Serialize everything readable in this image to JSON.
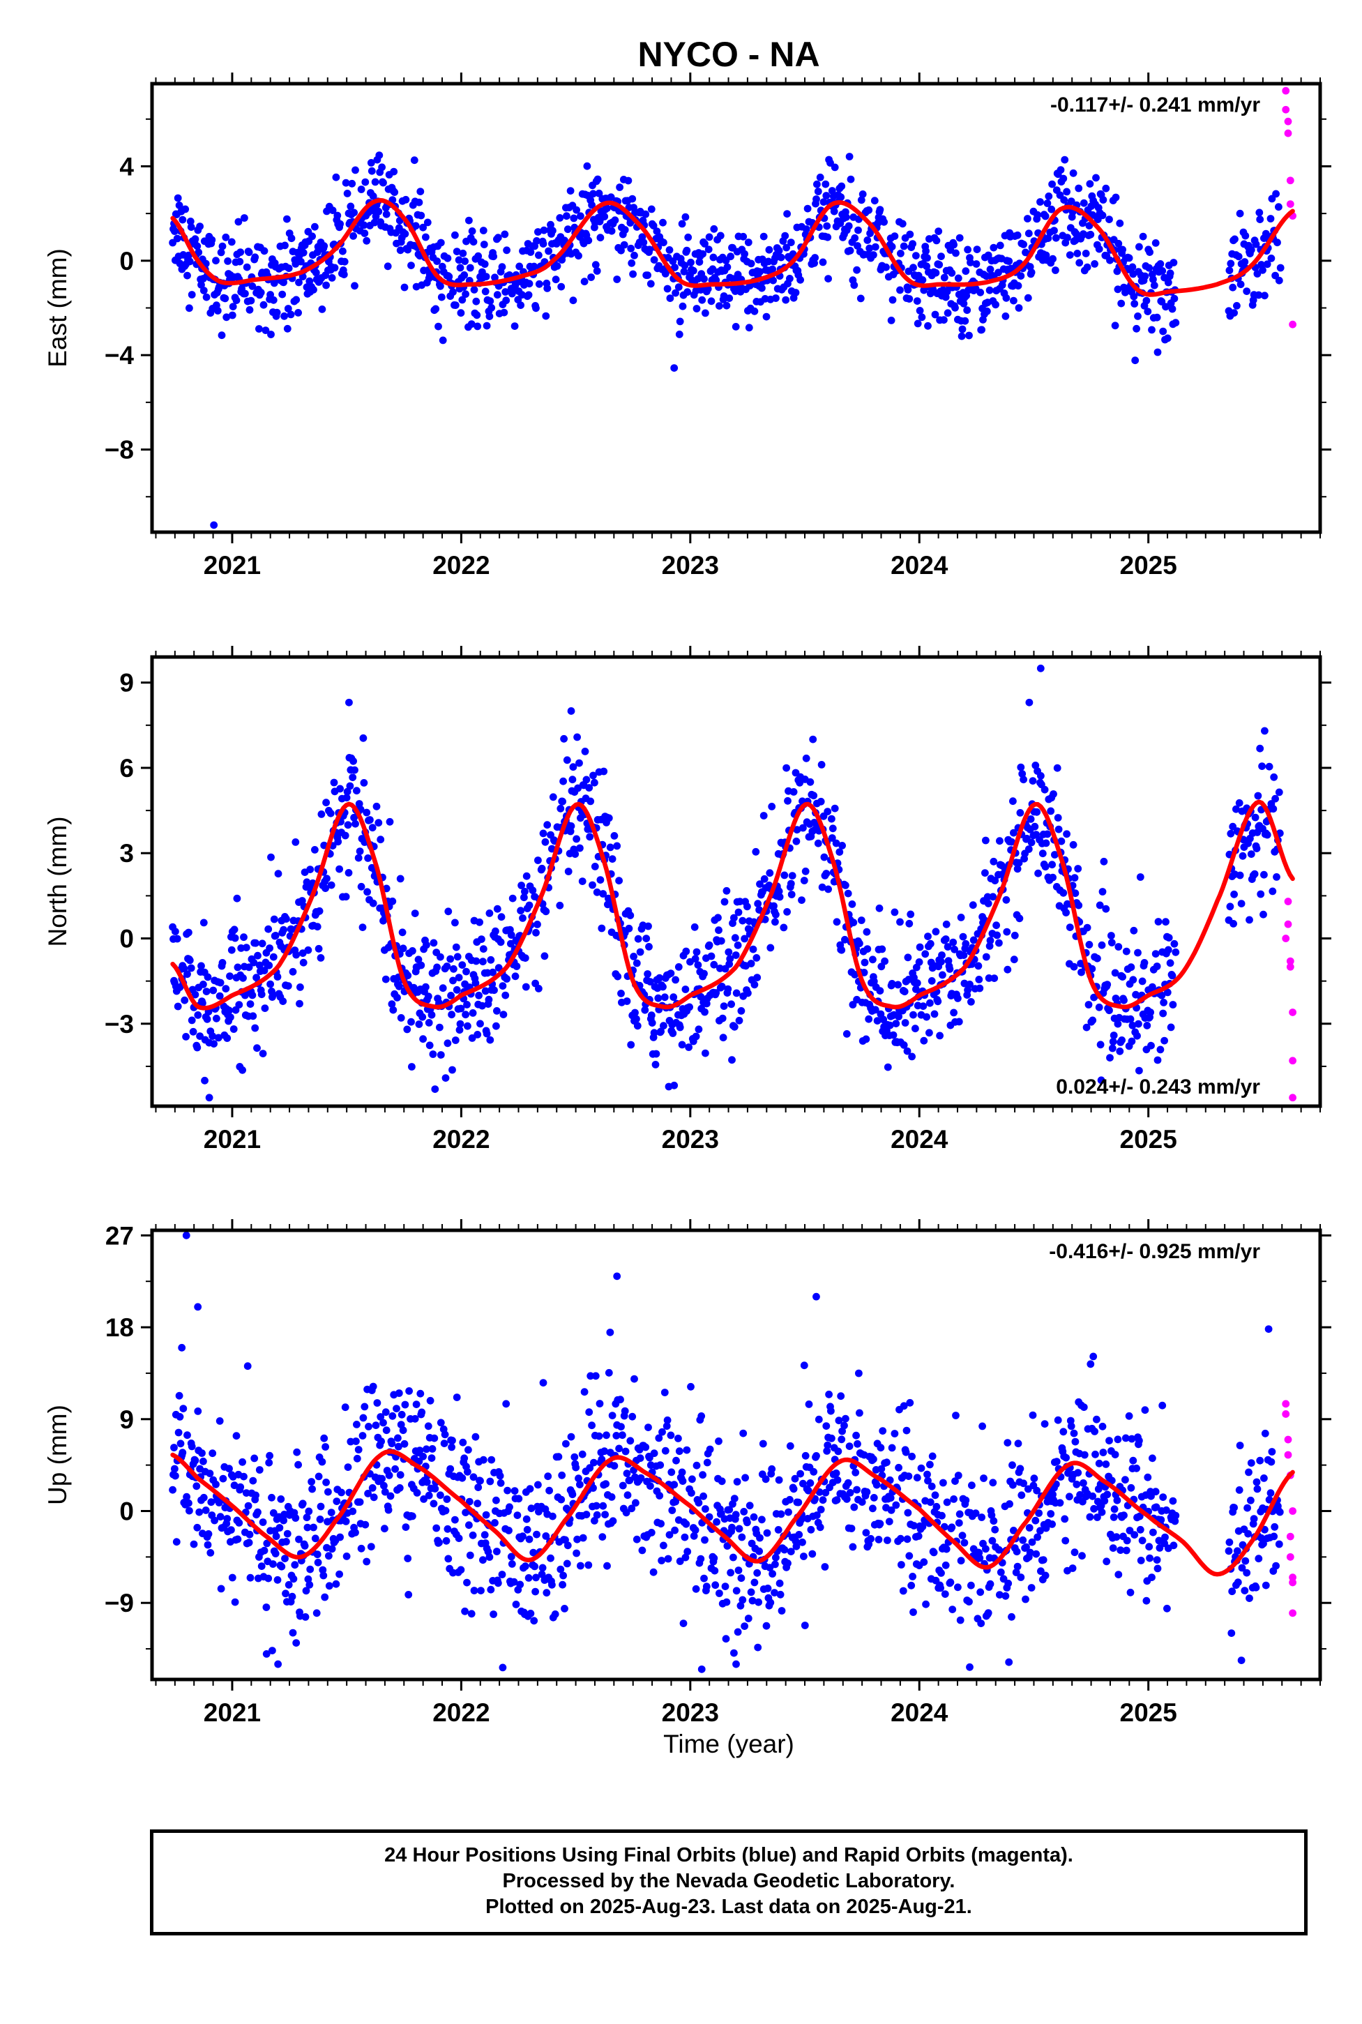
{
  "title": "NYCO - NA",
  "colors": {
    "final": "#0000ff",
    "rapid": "#ff00ff",
    "model": "#ff0000",
    "frame": "#000000"
  },
  "chart_data": [
    {
      "type": "scatter",
      "name": "East",
      "ylabel": "East (mm)",
      "xlabel": "",
      "rate_label": "-0.117+/- 0.241 mm/yr",
      "rate_position": "top-right",
      "xlim": [
        2020.65,
        2025.75
      ],
      "ylim": [
        -11.5,
        7.5
      ],
      "yticks": [
        -8,
        -4,
        0,
        4
      ],
      "xticks": [
        2021,
        2022,
        2023,
        2024,
        2025
      ],
      "grid": false,
      "model_curve": {
        "x": [
          2020.74,
          2020.85,
          2020.95,
          2021.1,
          2021.3,
          2021.45,
          2021.62,
          2021.75,
          2021.9,
          2022.05,
          2022.25,
          2022.4,
          2022.62,
          2022.78,
          2022.95,
          2023.1,
          2023.3,
          2023.45,
          2023.62,
          2023.78,
          2023.95,
          2024.1,
          2024.3,
          2024.45,
          2024.62,
          2024.78,
          2024.95,
          2025.1,
          2025.3,
          2025.45,
          2025.63
        ],
        "y": [
          1.8,
          0.0,
          -0.9,
          -0.8,
          -0.5,
          0.5,
          2.5,
          1.8,
          -0.7,
          -1.0,
          -0.7,
          0.0,
          2.4,
          1.5,
          -0.8,
          -1.0,
          -0.8,
          0.0,
          2.4,
          1.6,
          -0.8,
          -1.0,
          -0.9,
          -0.2,
          2.2,
          1.4,
          -1.2,
          -1.3,
          -1.0,
          -0.2,
          2.1
        ]
      },
      "outliers": {
        "x": [
          2020.92
        ],
        "y": [
          -11.2
        ]
      },
      "rapid_points": {
        "x": [
          2025.6,
          2025.6,
          2025.61,
          2025.61,
          2025.62,
          2025.62,
          2025.63,
          2025.63
        ],
        "y": [
          7.2,
          6.4,
          5.9,
          5.4,
          3.4,
          2.4,
          1.9,
          -2.7
        ]
      }
    },
    {
      "type": "scatter",
      "name": "North",
      "ylabel": "North (mm)",
      "xlabel": "",
      "rate_label": "0.024+/- 0.243 mm/yr",
      "rate_position": "bottom-right",
      "xlim": [
        2020.65,
        2025.75
      ],
      "ylim": [
        -5.9,
        9.9
      ],
      "yticks": [
        -3,
        0,
        3,
        6,
        9
      ],
      "xticks": [
        2021,
        2022,
        2023,
        2024,
        2025
      ],
      "grid": false,
      "model_curve": {
        "x": [
          2020.74,
          2020.85,
          2021.0,
          2021.2,
          2021.35,
          2021.5,
          2021.62,
          2021.75,
          2021.88,
          2022.0,
          2022.2,
          2022.35,
          2022.5,
          2022.62,
          2022.75,
          2022.88,
          2023.0,
          2023.2,
          2023.35,
          2023.5,
          2023.62,
          2023.75,
          2023.88,
          2024.0,
          2024.2,
          2024.35,
          2024.5,
          2024.62,
          2024.75,
          2024.88,
          2025.0,
          2025.15,
          2025.3,
          2025.48,
          2025.63
        ],
        "y": [
          -0.9,
          -2.4,
          -2.0,
          -1.0,
          1.5,
          4.7,
          2.8,
          -1.5,
          -2.4,
          -2.0,
          -1.0,
          1.5,
          4.7,
          2.8,
          -1.5,
          -2.4,
          -2.0,
          -1.0,
          1.5,
          4.7,
          2.8,
          -1.5,
          -2.4,
          -2.0,
          -1.0,
          1.5,
          4.7,
          2.8,
          -1.5,
          -2.4,
          -2.0,
          -1.2,
          1.3,
          4.8,
          2.1
        ]
      },
      "outliers": {
        "x": [
          2020.9,
          2020.88,
          2022.48,
          2024.48,
          2024.53,
          2021.51
        ],
        "y": [
          -5.6,
          -5.0,
          8.0,
          8.3,
          9.5,
          8.3
        ]
      },
      "rapid_points": {
        "x": [
          2025.6,
          2025.61,
          2025.61,
          2025.62,
          2025.62,
          2025.63,
          2025.63,
          2025.63
        ],
        "y": [
          0.0,
          1.3,
          0.5,
          -0.8,
          -1.0,
          -2.6,
          -4.3,
          -5.6
        ]
      }
    },
    {
      "type": "scatter",
      "name": "Up",
      "ylabel": "Up (mm)",
      "xlabel": "Time (year)",
      "rate_label": "-0.416+/- 0.925 mm/yr",
      "rate_position": "top-right",
      "xlim": [
        2020.65,
        2025.75
      ],
      "ylim": [
        -16.5,
        27.5
      ],
      "yticks": [
        -9,
        0,
        9,
        18,
        27
      ],
      "xticks": [
        2021,
        2022,
        2023,
        2024,
        2025
      ],
      "grid": false,
      "model_curve": {
        "x": [
          2020.74,
          2020.85,
          2021.0,
          2021.15,
          2021.3,
          2021.45,
          2021.65,
          2021.8,
          2022.0,
          2022.15,
          2022.3,
          2022.45,
          2022.65,
          2022.8,
          2023.0,
          2023.15,
          2023.3,
          2023.45,
          2023.65,
          2023.8,
          2024.0,
          2024.15,
          2024.3,
          2024.45,
          2024.65,
          2024.8,
          2025.0,
          2025.15,
          2025.3,
          2025.45,
          2025.63
        ],
        "y": [
          5.5,
          3.2,
          0.5,
          -2.5,
          -4.5,
          -1.0,
          5.5,
          4.5,
          1.0,
          -2.0,
          -4.8,
          -1.0,
          5.0,
          3.8,
          0.5,
          -2.5,
          -4.9,
          -1.0,
          4.8,
          3.5,
          0.2,
          -3.0,
          -5.5,
          -1.5,
          4.5,
          3.0,
          -0.5,
          -3.0,
          -6.2,
          -3.0,
          3.8
        ]
      },
      "outliers": {
        "x": [
          2020.8,
          2020.78,
          2020.85,
          2022.68,
          2023.55,
          2022.65,
          2021.15,
          2021.2,
          2023.05,
          2023.2
        ],
        "y": [
          27.0,
          16.0,
          20.0,
          23.0,
          21.0,
          17.5,
          -14.0,
          -15.0,
          -15.5,
          -15.0
        ]
      },
      "rapid_points": {
        "x": [
          2025.6,
          2025.6,
          2025.61,
          2025.61,
          2025.62,
          2025.62,
          2025.62,
          2025.63,
          2025.63,
          2025.63,
          2025.63
        ],
        "y": [
          10.5,
          9.5,
          7.0,
          5.5,
          3.5,
          -2.5,
          -4.5,
          -6.5,
          -7.0,
          -10.0,
          0.0
        ]
      }
    }
  ],
  "footnote": {
    "line1": "24 Hour Positions Using Final Orbits (blue) and Rapid Orbits (magenta).",
    "line2": "Processed by the Nevada Geodetic Laboratory.",
    "line3": "Plotted on 2025-Aug-23. Last data on 2025-Aug-21."
  }
}
